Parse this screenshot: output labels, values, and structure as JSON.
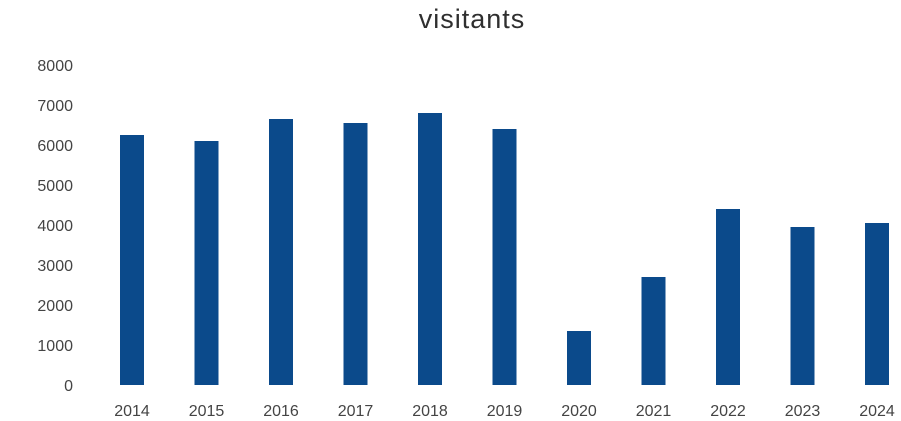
{
  "chart_data": {
    "type": "bar",
    "title": "visitants",
    "xlabel": "",
    "ylabel": "",
    "categories": [
      "2014",
      "2015",
      "2016",
      "2017",
      "2018",
      "2019",
      "2020",
      "2021",
      "2022",
      "2023",
      "2024"
    ],
    "values": [
      6250,
      6100,
      6650,
      6550,
      6800,
      6400,
      1350,
      2700,
      4400,
      3950,
      4050
    ],
    "ylim": [
      0,
      8000
    ],
    "yticks": [
      "0",
      "1000",
      "2000",
      "3000",
      "4000",
      "5000",
      "6000",
      "7000",
      "8000"
    ],
    "grid": false,
    "legend": "none",
    "bar_color": "#0b4a8b"
  }
}
